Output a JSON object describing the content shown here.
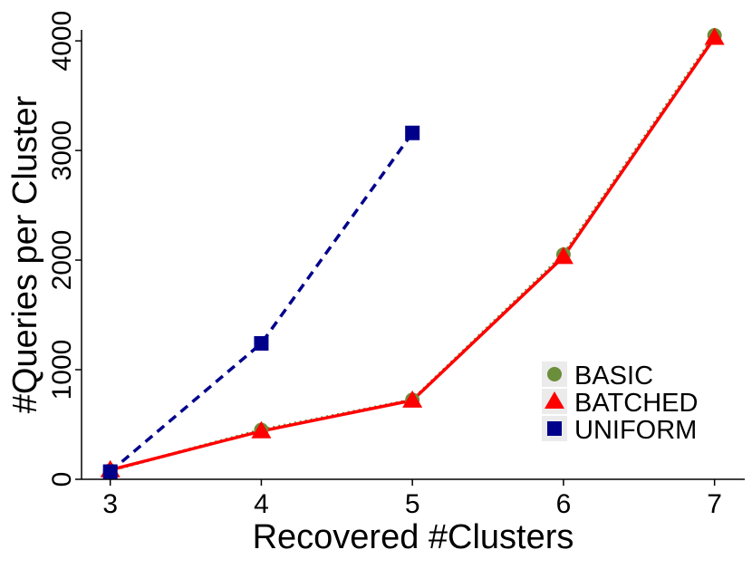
{
  "chart_data": {
    "type": "line",
    "x_label": "Recovered #Clusters",
    "y_label": "#Queries per Cluster",
    "x": [
      3,
      4,
      5,
      6,
      7
    ],
    "series": [
      {
        "name": "BASIC",
        "color": "#6b8e3a",
        "marker": "circle",
        "dash": "dotted",
        "values": [
          80,
          450,
          725,
          2050,
          4050
        ]
      },
      {
        "name": "BATCHED",
        "color": "#ff0000",
        "marker": "triangle",
        "dash": "solid",
        "values": [
          85,
          440,
          720,
          2030,
          4030
        ]
      },
      {
        "name": "UNIFORM",
        "color": "#00008b",
        "marker": "square",
        "dash": "dashed",
        "values": [
          70,
          1240,
          3160,
          null,
          null
        ]
      }
    ],
    "xlim": [
      2.81,
      7.2
    ],
    "xticks": [
      3,
      4,
      5,
      6,
      7
    ],
    "ylim": [
      0,
      4100
    ],
    "yticks": [
      0,
      1000,
      2000,
      3000,
      4000
    ],
    "grid": false,
    "legend": "bottom-right"
  }
}
